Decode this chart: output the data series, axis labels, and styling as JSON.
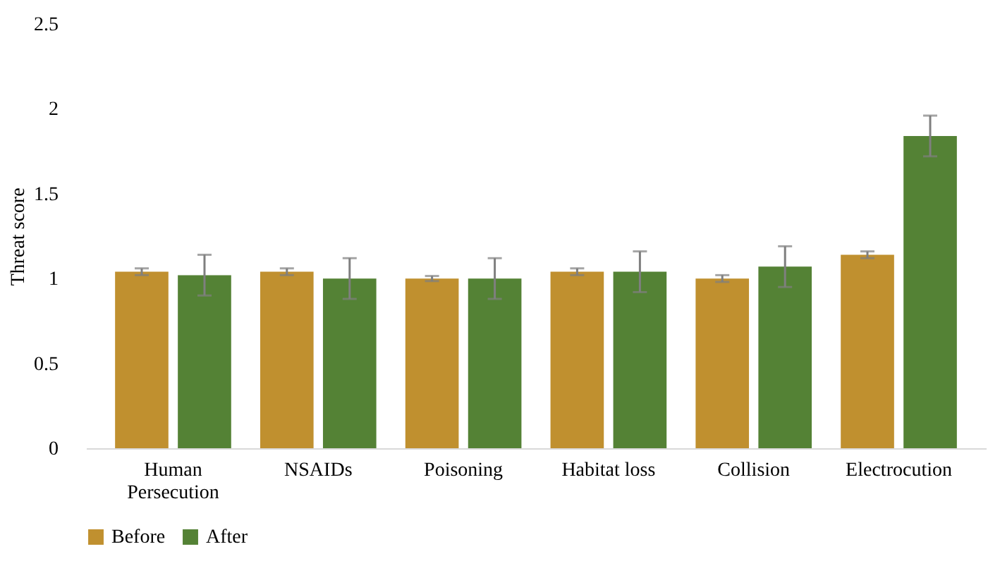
{
  "chart_data": {
    "type": "bar",
    "ylabel": "Threat score",
    "categories": [
      "Human Persecution",
      "NSAIDs",
      "Poisoning",
      "Habitat loss",
      "Collision",
      "Electrocution"
    ],
    "series": [
      {
        "name": "Before",
        "color": "#c0902f",
        "values": [
          1.04,
          1.04,
          1.0,
          1.04,
          1.0,
          1.14
        ],
        "errors": [
          0.02,
          0.02,
          0.015,
          0.02,
          0.02,
          0.02
        ]
      },
      {
        "name": "After",
        "color": "#548235",
        "values": [
          1.02,
          1.0,
          1.0,
          1.04,
          1.07,
          1.84
        ],
        "errors": [
          0.12,
          0.12,
          0.12,
          0.12,
          0.12,
          0.12
        ]
      }
    ],
    "ylim": [
      0,
      2.5
    ],
    "yticks": [
      0,
      0.5,
      1,
      1.5,
      2,
      2.5
    ],
    "grid": false,
    "legend": "bottom"
  }
}
